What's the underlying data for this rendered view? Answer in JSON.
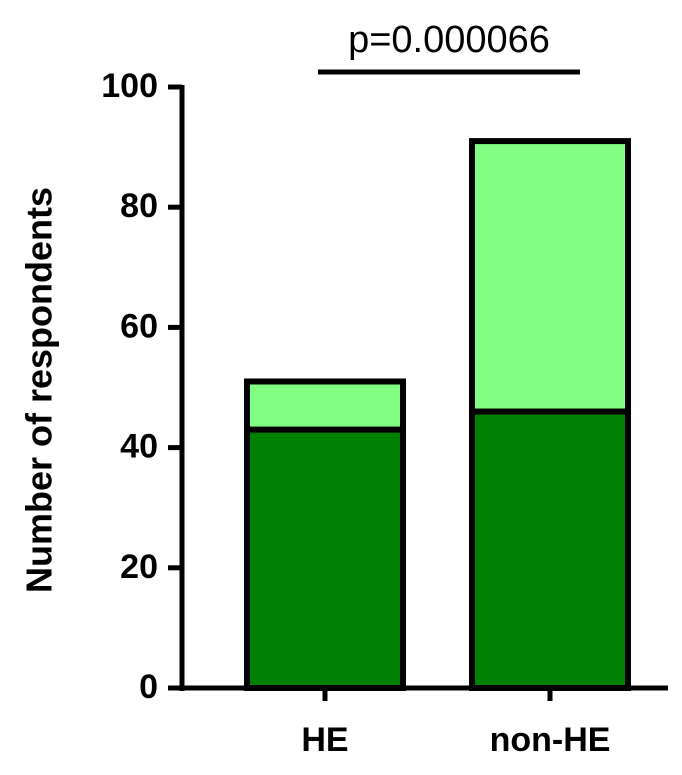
{
  "chart_data": {
    "type": "stacked-bar",
    "annotation": "p=0.000066",
    "y_label": "Number of respondents",
    "categories": [
      "HE",
      "non-HE"
    ],
    "series": [
      {
        "color": "#008000",
        "values": [
          43,
          46
        ]
      },
      {
        "color": "#80ff80",
        "values": [
          8,
          45
        ]
      }
    ],
    "ylim": [
      0,
      100
    ],
    "yticks": [
      0,
      20,
      40,
      60,
      80,
      100
    ]
  }
}
